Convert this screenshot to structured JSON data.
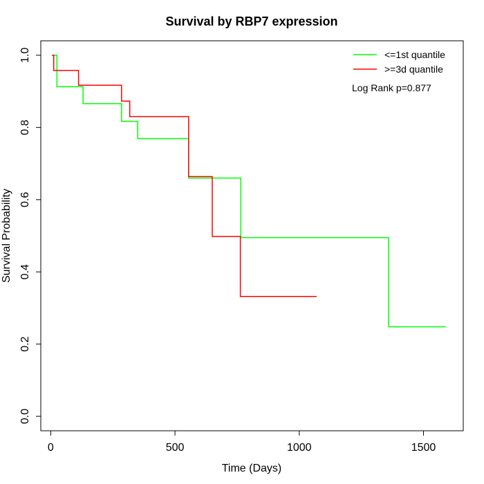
{
  "chart_data": {
    "type": "line",
    "title": "Survival by RBP7 expression",
    "xlabel": "Time (Days)",
    "ylabel": "Survival Probability",
    "xlim": [
      -40,
      1660
    ],
    "ylim": [
      -0.04,
      1.04
    ],
    "x_ticks": [
      0,
      500,
      1000,
      1500
    ],
    "y_ticks": [
      0.0,
      0.2,
      0.4,
      0.6,
      0.8,
      1.0
    ],
    "x_tick_labels": [
      "0",
      "500",
      "1000",
      "1500"
    ],
    "y_tick_labels": [
      "0.0",
      "0.2",
      "0.4",
      "0.6",
      "0.8",
      "1.0"
    ],
    "grid": false,
    "legend_position": "top-right",
    "annotation": "Log Rank p=0.877",
    "series": [
      {
        "name": "<=1st quantile",
        "color": "#00ff00",
        "step": true,
        "x": [
          5,
          25,
          130,
          285,
          350,
          555,
          765,
          1360,
          1590
        ],
        "y": [
          1.0,
          0.913,
          0.866,
          0.817,
          0.769,
          0.66,
          0.495,
          0.248,
          0.248
        ]
      },
      {
        "name": ">=3d quantile",
        "color": "#ff0000",
        "step": true,
        "x": [
          5,
          12,
          112,
          285,
          318,
          555,
          650,
          763,
          1070
        ],
        "y": [
          1.0,
          0.958,
          0.917,
          0.873,
          0.83,
          0.664,
          0.498,
          0.332,
          0.332
        ]
      }
    ]
  }
}
